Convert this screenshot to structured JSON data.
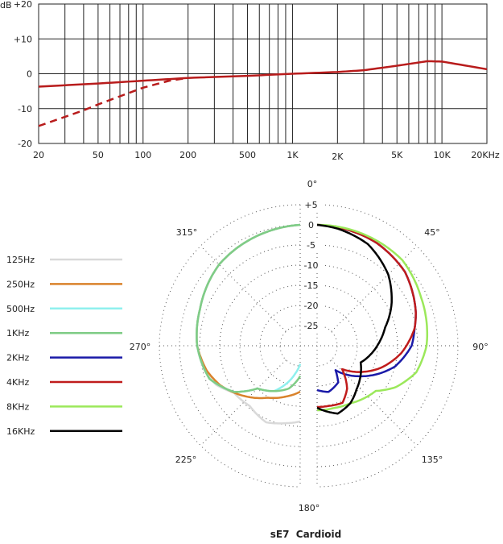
{
  "chart_data": [
    {
      "type": "line",
      "ylabel": "dB",
      "x_scale": "log",
      "xlim": [
        20,
        20000
      ],
      "ylim": [
        -20,
        20
      ],
      "grid": true,
      "y_ticks": [
        {
          "v": 20,
          "label": "+20"
        },
        {
          "v": 10,
          "label": "+10"
        },
        {
          "v": 0,
          "label": "0"
        },
        {
          "v": -10,
          "label": "-10"
        },
        {
          "v": -20,
          "label": "-20"
        }
      ],
      "x_ticks": [
        {
          "v": 20,
          "label": "20"
        },
        {
          "v": 50,
          "label": "50"
        },
        {
          "v": 100,
          "label": "100"
        },
        {
          "v": 200,
          "label": "200"
        },
        {
          "v": 500,
          "label": "500"
        },
        {
          "v": 1000,
          "label": "1K"
        },
        {
          "v": 2000,
          "label": "2K"
        },
        {
          "v": 5000,
          "label": "5K"
        },
        {
          "v": 10000,
          "label": "10K"
        },
        {
          "v": 20000,
          "label": "20KHz"
        }
      ],
      "series": [
        {
          "style": "solid",
          "color": "#b81c1c",
          "x": [
            20,
            50,
            100,
            200,
            500,
            1000,
            2000,
            3000,
            5000,
            8000,
            10000,
            20000
          ],
          "y": [
            -3.7,
            -2.8,
            -2,
            -1.2,
            -0.6,
            0,
            0.5,
            1,
            2.3,
            3.6,
            3.5,
            1.3
          ]
        },
        {
          "style": "dashed",
          "color": "#b81c1c",
          "x": [
            20,
            40,
            50,
            100,
            150,
            200
          ],
          "y": [
            -15,
            -10.5,
            -8.8,
            -4,
            -2,
            -1.2
          ]
        }
      ]
    },
    {
      "type": "polar",
      "title": "sE7  Cardioid",
      "angle_labels": [
        {
          "a": 0,
          "label": "0°"
        },
        {
          "a": 45,
          "label": "45°"
        },
        {
          "a": 90,
          "label": "90°"
        },
        {
          "a": 135,
          "label": "135°"
        },
        {
          "a": 180,
          "label": "180°"
        },
        {
          "a": 225,
          "label": "225°"
        },
        {
          "a": 270,
          "label": "270°"
        },
        {
          "a": 315,
          "label": "315°"
        }
      ],
      "radial_ticks": [
        {
          "v": 5,
          "label": "+5"
        },
        {
          "v": 0,
          "label": "0"
        },
        {
          "v": -5,
          "label": "-5"
        },
        {
          "v": -10,
          "label": "-10"
        },
        {
          "v": -15,
          "label": "-15"
        },
        {
          "v": -20,
          "label": "-20"
        },
        {
          "v": -25,
          "label": "-25"
        }
      ],
      "rlim": [
        -30,
        5
      ],
      "legend_position": "left",
      "series": [
        {
          "name": "125Hz",
          "color": "#d9d9d9",
          "side": "left",
          "points": [
            [
              360,
              0
            ],
            [
              315,
              -1.5
            ],
            [
              290,
              -3.5
            ],
            [
              270,
              -4.4
            ],
            [
              255,
              -5.5
            ],
            [
              245,
              -7
            ],
            [
              235,
              -9.8
            ],
            [
              220,
              -10.5
            ],
            [
              204,
              -9.2
            ],
            [
              190,
              -10.5
            ],
            [
              180,
              -11.2
            ]
          ]
        },
        {
          "name": "250Hz",
          "color": "#d9822b",
          "side": "left",
          "points": [
            [
              360,
              0
            ],
            [
              315,
              -1.5
            ],
            [
              290,
              -3.5
            ],
            [
              270,
              -4.4
            ],
            [
              255,
              -6
            ],
            [
              244,
              -7.8
            ],
            [
              225,
              -12
            ],
            [
              212,
              -14.8
            ],
            [
              195,
              -17
            ],
            [
              180,
              -18.6
            ]
          ]
        },
        {
          "name": "500Hz",
          "color": "#8ff0ee",
          "side": "left",
          "points": [
            [
              360,
              0
            ],
            [
              315,
              -1.5
            ],
            [
              290,
              -3.5
            ],
            [
              270,
              -4.4
            ],
            [
              250,
              -6
            ],
            [
              235,
              -10
            ],
            [
              225,
              -15
            ],
            [
              210,
              -17
            ],
            [
              200,
              -20
            ],
            [
              190,
              -23
            ],
            [
              180,
              -25.5
            ]
          ]
        },
        {
          "name": "1KHz",
          "color": "#7fcc86",
          "side": "left",
          "points": [
            [
              360,
              0
            ],
            [
              315,
              -1.5
            ],
            [
              290,
              -3.5
            ],
            [
              270,
              -4.4
            ],
            [
              250,
              -6
            ],
            [
              235,
              -10
            ],
            [
              225,
              -15
            ],
            [
              210,
              -17
            ],
            [
              195,
              -19
            ],
            [
              180,
              -22.5
            ]
          ]
        },
        {
          "name": "2KHz",
          "color": "#1a1aa8",
          "side": "right",
          "points": [
            [
              0,
              0
            ],
            [
              30,
              -0.5
            ],
            [
              50,
              -1.5
            ],
            [
              72,
              -4.2
            ],
            [
              80,
              -5.4
            ],
            [
              90,
              -6.5
            ],
            [
              105,
              -10
            ],
            [
              125,
              -16.8
            ],
            [
              143,
              -22.4
            ],
            [
              150,
              -19.5
            ],
            [
              166,
              -18.2
            ],
            [
              180,
              -19
            ]
          ]
        },
        {
          "name": "4KHz",
          "color": "#c01c1c",
          "side": "right",
          "points": [
            [
              0,
              0
            ],
            [
              30,
              -0.5
            ],
            [
              50,
              -1.5
            ],
            [
              72,
              -4.2
            ],
            [
              80,
              -5.4
            ],
            [
              95,
              -9
            ],
            [
              109,
              -13.2
            ],
            [
              133,
              -21.5
            ],
            [
              145,
              -17
            ],
            [
              156,
              -14.5
            ],
            [
              170,
              -14.8
            ],
            [
              180,
              -14.8
            ]
          ]
        },
        {
          "name": "8KHz",
          "color": "#9be85a",
          "side": "right",
          "points": [
            [
              0,
              0
            ],
            [
              20,
              0
            ],
            [
              45,
              0
            ],
            [
              65,
              -1.5
            ],
            [
              90,
              -2.8
            ],
            [
              105,
              -4.5
            ],
            [
              118,
              -8
            ],
            [
              127.5,
              -11.6
            ],
            [
              150,
              -13.5
            ],
            [
              165,
              -14
            ],
            [
              180,
              -14
            ]
          ]
        },
        {
          "name": "16KHz",
          "color": "#000000",
          "side": "right",
          "points": [
            [
              0,
              0
            ],
            [
              10,
              -0.5
            ],
            [
              26.6,
              -1.8
            ],
            [
              45,
              -5
            ],
            [
              60.8,
              -8.8
            ],
            [
              75,
              -12.5
            ],
            [
              88.5,
              -14.8
            ],
            [
              111,
              -18.4
            ],
            [
              137.8,
              -15.4
            ],
            [
              150,
              -13.5
            ],
            [
              163,
              -12.4
            ],
            [
              180,
              -14.6
            ]
          ]
        }
      ]
    }
  ]
}
